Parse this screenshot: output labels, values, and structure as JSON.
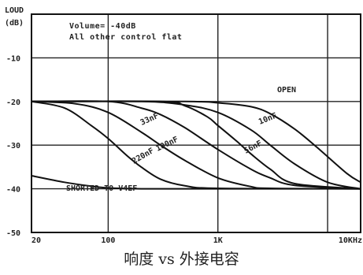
{
  "caption": "响度 vs 外接电容",
  "chart_data": {
    "type": "line",
    "yaxis_title_top": "LOUD",
    "yaxis_title_unit": "(dB)",
    "x_scale": "log",
    "xlim": [
      20,
      20000
    ],
    "ylim": [
      -50,
      0
    ],
    "x_ticks": [
      20,
      100,
      1000,
      10000
    ],
    "x_tick_labels": [
      "20",
      "100",
      "1K",
      "10KHz"
    ],
    "y_ticks": [
      -10,
      -20,
      -30,
      -40,
      -50
    ],
    "y_tick_labels": [
      "-10",
      "-20",
      "-30",
      "-40",
      "-50"
    ],
    "grid": true,
    "annotations": [
      "Volume= -40dB",
      "All other control flat"
    ],
    "series": [
      {
        "name": "OPEN",
        "x": [
          20,
          500,
          1000,
          2000,
          3000,
          5000,
          8000,
          15000,
          20000
        ],
        "y": [
          -20,
          -20,
          -20.3,
          -21.2,
          -22.8,
          -26.3,
          -30.5,
          -36.5,
          -38.5
        ]
      },
      {
        "name": "10nF",
        "x": [
          20,
          200,
          500,
          1000,
          2000,
          3000,
          5000,
          10000,
          20000
        ],
        "y": [
          -20,
          -20,
          -20.8,
          -22.5,
          -26.5,
          -30,
          -34.3,
          -38.5,
          -40
        ]
      },
      {
        "name": "33nF",
        "x": [
          20,
          100,
          200,
          300,
          500,
          1000,
          2000,
          3000,
          5000,
          20000
        ],
        "y": [
          -20,
          -20,
          -21.5,
          -23,
          -26,
          -31,
          -35.5,
          -37.5,
          -39.2,
          -40
        ]
      },
      {
        "name": "56nF",
        "x": [
          20,
          300,
          500,
          800,
          1000,
          1500,
          2000,
          3000,
          5000,
          20000
        ],
        "y": [
          -20,
          -20,
          -21,
          -23.5,
          -25.5,
          -29.2,
          -32,
          -35.5,
          -38.8,
          -40
        ]
      },
      {
        "name": "100nF",
        "x": [
          20,
          50,
          100,
          200,
          300,
          500,
          1000,
          2000,
          3000,
          20000
        ],
        "y": [
          -20,
          -20.5,
          -22.5,
          -27,
          -30,
          -33.5,
          -37.5,
          -39.5,
          -39.9,
          -40
        ]
      },
      {
        "name": "220nF",
        "x": [
          20,
          40,
          70,
          100,
          150,
          200,
          300,
          500,
          1000,
          20000
        ],
        "y": [
          -20,
          -21.5,
          -25.5,
          -28.5,
          -32.5,
          -35,
          -37.8,
          -39.3,
          -39.9,
          -40
        ]
      },
      {
        "name": "SHORTED TO V4EF",
        "x": [
          20,
          40,
          70,
          100,
          200,
          500,
          1000,
          20000
        ],
        "y": [
          -37,
          -38.5,
          -39.4,
          -39.8,
          -40,
          -40,
          -40,
          -40
        ]
      }
    ],
    "curve_labels": [
      "OPEN",
      "10nF",
      "33nF",
      "56nF",
      "100nF",
      "220nF",
      "SHORTED TO V4EF"
    ]
  }
}
